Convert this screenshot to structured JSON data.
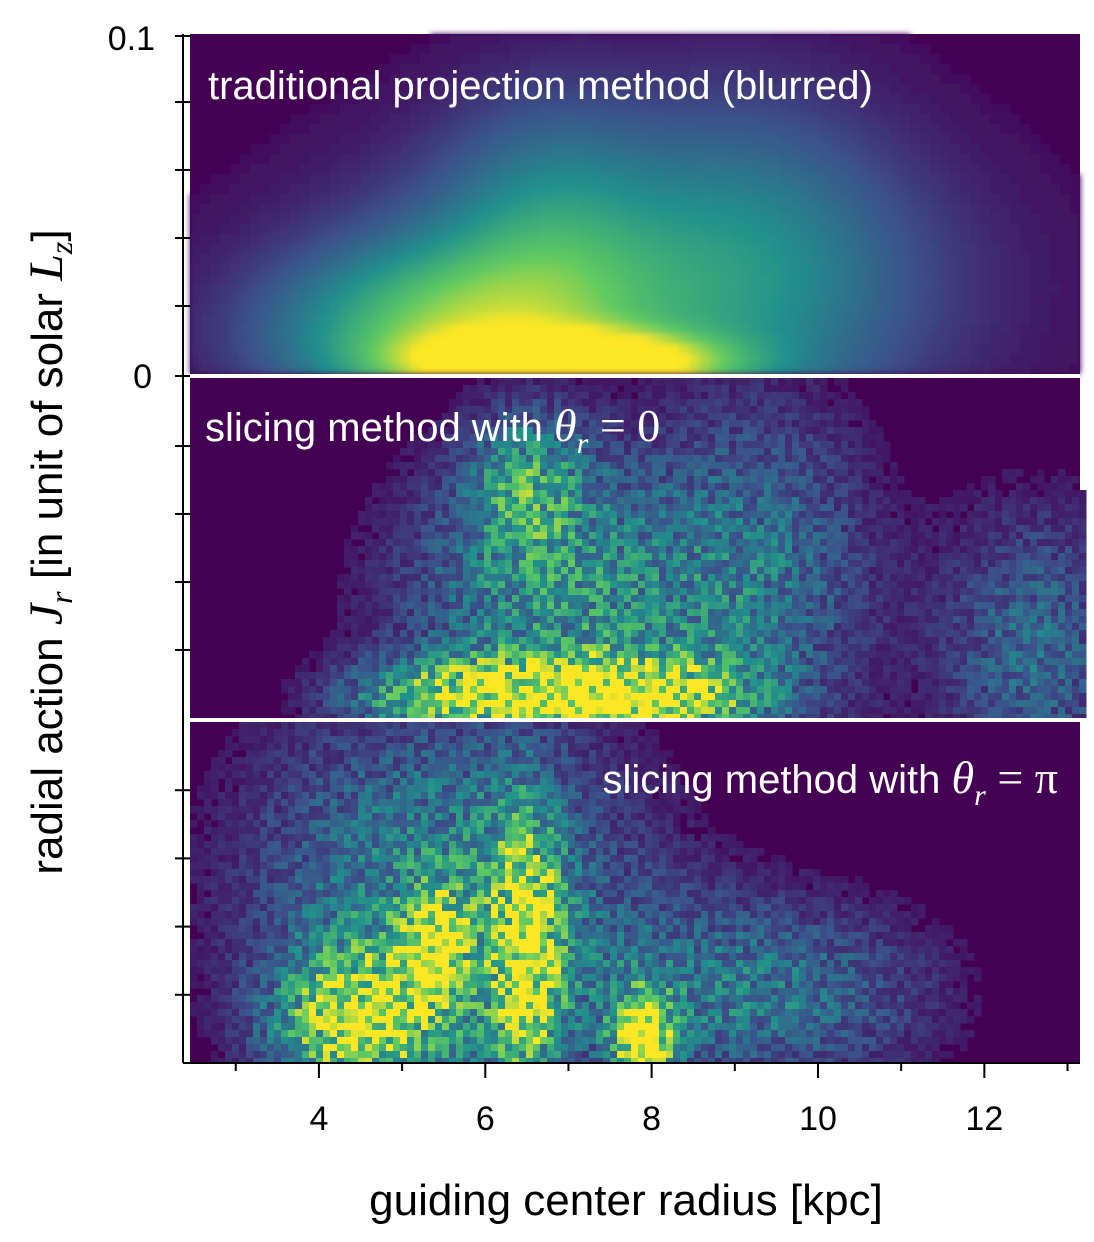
{
  "chart_data": {
    "type": "heatmap",
    "colormap": "viridis",
    "colors": {
      "low": "#440154",
      "mid": "#21918c",
      "high": "#fde725",
      "separator": "#ffffff",
      "axis": "#000000"
    },
    "xlabel": "guiding center radius [kpc]",
    "ylabel": {
      "prefix": "radial action ",
      "symbol": "J",
      "symbol_sub": "r",
      "middle": " [in unit of solar ",
      "unit_symbol": "L",
      "unit_sub": "z",
      "suffix": "]"
    },
    "xlim": [
      2.45,
      13.15
    ],
    "x_ticks": [
      {
        "value": 4,
        "label": "4"
      },
      {
        "value": 6,
        "label": "6"
      },
      {
        "value": 8,
        "label": "8"
      },
      {
        "value": 10,
        "label": "10"
      },
      {
        "value": 12,
        "label": "12"
      }
    ],
    "ylim": [
      0,
      0.1
    ],
    "y_tick_labels": [
      {
        "value": 0.1,
        "label": "0.1"
      },
      {
        "value": 0,
        "label": "0"
      }
    ],
    "panels": [
      {
        "label_text": "traditional projection method (blurred)",
        "label_math": null,
        "label_position": "top-left",
        "style": "blurred",
        "features": [
          {
            "x": 7.0,
            "y": 0.003,
            "sx": 1.2,
            "sy": 0.006,
            "a": 1.0
          },
          {
            "x": 5.4,
            "y": 0.012,
            "sx": 1.5,
            "sy": 0.018,
            "a": 0.55
          },
          {
            "x": 8.0,
            "y": 0.025,
            "sx": 2.6,
            "sy": 0.035,
            "a": 0.42
          },
          {
            "x": 6.7,
            "y": 0.045,
            "sx": 0.9,
            "sy": 0.03,
            "a": 0.22
          },
          {
            "x": 9.3,
            "y": 0.04,
            "sx": 1.2,
            "sy": 0.04,
            "a": 0.16
          }
        ]
      },
      {
        "label_text": "slicing method with ",
        "label_math": {
          "symbol": "θ",
          "sub": "r",
          "rhs": " = 0"
        },
        "label_position": "top-left",
        "style": "noisy",
        "features": [
          {
            "x": 7.8,
            "y": 0.006,
            "sx": 0.9,
            "sy": 0.008,
            "a": 0.9
          },
          {
            "x": 5.8,
            "y": 0.006,
            "sx": 1.0,
            "sy": 0.008,
            "a": 0.75
          },
          {
            "x": 6.8,
            "y": 0.035,
            "sx": 1.3,
            "sy": 0.03,
            "a": 0.5
          },
          {
            "x": 9.3,
            "y": 0.04,
            "sx": 1.0,
            "sy": 0.04,
            "a": 0.35
          },
          {
            "x": 12.6,
            "y": 0.02,
            "sx": 0.8,
            "sy": 0.03,
            "a": 0.35
          },
          {
            "x": 6.5,
            "y": 0.07,
            "sx": 0.5,
            "sy": 0.015,
            "a": 0.4
          }
        ]
      },
      {
        "label_text": "slicing method with ",
        "label_math": {
          "symbol": "θ",
          "sub": "r",
          "rhs": " = π"
        },
        "label_position": "top-right",
        "style": "noisy",
        "features": [
          {
            "x": 7.9,
            "y": 0.006,
            "sx": 0.25,
            "sy": 0.01,
            "a": 1.0
          },
          {
            "x": 4.5,
            "y": 0.012,
            "sx": 0.7,
            "sy": 0.015,
            "a": 0.85
          },
          {
            "x": 5.4,
            "y": 0.035,
            "sx": 0.25,
            "sy": 0.01,
            "a": 0.75
          },
          {
            "x": 6.5,
            "y": 0.03,
            "sx": 0.3,
            "sy": 0.03,
            "a": 0.7
          },
          {
            "x": 5.5,
            "y": 0.05,
            "sx": 1.6,
            "sy": 0.04,
            "a": 0.5
          },
          {
            "x": 9.2,
            "y": 0.02,
            "sx": 1.5,
            "sy": 0.02,
            "a": 0.4
          }
        ]
      }
    ]
  }
}
